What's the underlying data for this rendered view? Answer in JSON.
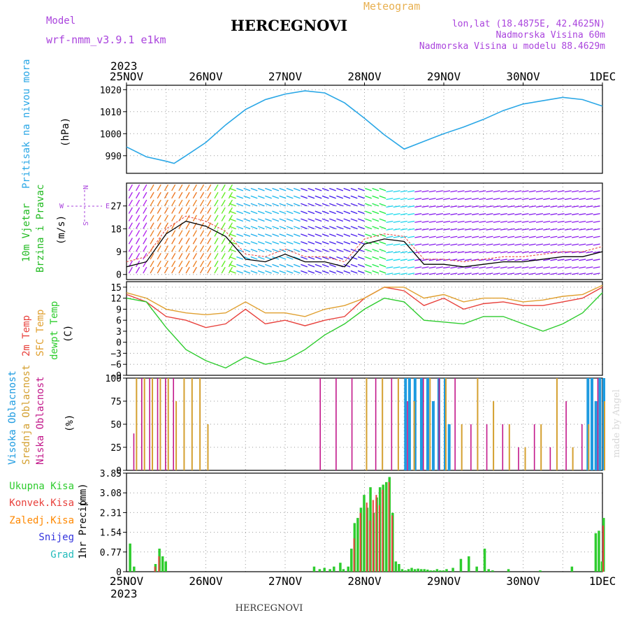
{
  "header": {
    "model_label": "Model",
    "model_name": "wrf-nmm_v3.9.1 e1km",
    "station": "HERCEGNOVI",
    "meteogram": "Meteogram",
    "lonlat": "lon,lat (18.4875E, 42.4625N)",
    "altitude": "Nadmorska Visina 60m",
    "model_altitude": "Nadmorska Visina u modelu 88.4629m",
    "footer_station": "HERCEGNOVI",
    "watermark": "made by Angel"
  },
  "colors": {
    "pressure": "#2aa7e6",
    "wind_label": "#22bb22",
    "dir_label": "#aa44dd",
    "temp2m": "#e8413c",
    "sfc": "#e0a030",
    "dewpt": "#2ecc2e",
    "high_cloud": "#1e9be0",
    "mid_cloud": "#d4a030",
    "low_cloud": "#c2188a",
    "total_precip": "#2ecc2e",
    "conv_precip": "#e8413c",
    "frozen": "#ff8800",
    "snow": "#3333dd",
    "hail": "#22bbbb"
  },
  "time_axis": {
    "year": "2023",
    "ticks": [
      "25NOV",
      "26NOV",
      "27NOV",
      "28NOV",
      "29NOV",
      "30NOV",
      "1DEC"
    ]
  },
  "chart_data": [
    {
      "type": "line",
      "name": "pressure",
      "ylabel": "Pritisak na nivou mora",
      "unit": "(hPa)",
      "ylim": [
        982,
        1022
      ],
      "yticks": [
        990,
        1000,
        1010,
        1020
      ],
      "grid": true,
      "x_days": [
        0,
        0.25,
        0.5,
        0.6,
        0.75,
        1,
        1.25,
        1.5,
        1.75,
        2,
        2.25,
        2.5,
        2.75,
        3,
        3.25,
        3.5,
        3.75,
        4,
        4.25,
        4.5,
        4.75,
        5,
        5.25,
        5.5,
        5.75,
        6
      ],
      "series": [
        {
          "values": [
            994,
            989.5,
            987.5,
            986.5,
            990,
            996,
            1004,
            1011,
            1015.5,
            1018,
            1019.5,
            1018.5,
            1014,
            1007,
            999.5,
            993,
            996.5,
            1000,
            1003,
            1006.5,
            1010.5,
            1013.5,
            1015,
            1016.5,
            1015.5,
            1012.5
          ]
        }
      ]
    },
    {
      "type": "line",
      "name": "wind",
      "ylabel": "10m Vjetar",
      "ylabel2": "Brzina i Pravac",
      "unit": "(m/s)",
      "ylim": [
        -2,
        36
      ],
      "yticks": [
        0,
        9,
        18,
        27
      ],
      "grid": true,
      "compass": [
        "N",
        "S",
        "W",
        "E"
      ],
      "x_days": [
        0,
        0.25,
        0.5,
        0.75,
        1,
        1.25,
        1.5,
        1.75,
        2,
        2.25,
        2.5,
        2.75,
        3,
        3.25,
        3.5,
        3.75,
        4,
        4.25,
        4.5,
        4.75,
        5,
        5.25,
        5.5,
        5.75,
        6
      ],
      "series": [
        {
          "values": [
            3,
            5,
            16,
            21,
            19,
            15,
            6,
            5,
            8,
            5,
            5,
            3,
            12,
            14,
            13,
            4,
            4,
            3,
            4,
            5,
            5,
            6,
            7,
            7,
            9
          ]
        }
      ]
    },
    {
      "type": "line",
      "name": "temperature",
      "ylabel": "2m Temp",
      "ylabel2": "SFC Temp",
      "ylabel3": "dewpt Temp",
      "unit": "(C)",
      "ylim": [
        -9,
        16.5
      ],
      "yticks": [
        -9,
        -6,
        -3,
        0,
        3,
        6,
        9,
        12,
        15
      ],
      "grid": true,
      "x_days": [
        0,
        0.25,
        0.5,
        0.75,
        1,
        1.25,
        1.5,
        1.75,
        2,
        2.25,
        2.5,
        2.75,
        3,
        3.25,
        3.5,
        3.75,
        4,
        4.25,
        4.5,
        4.75,
        5,
        5.25,
        5.5,
        5.75,
        6
      ],
      "series": [
        {
          "name": "2m Temp",
          "values": [
            13,
            11,
            7,
            6,
            4,
            5,
            9,
            5,
            6,
            4.5,
            6,
            7,
            12,
            15,
            14,
            10,
            12,
            9,
            10.5,
            11,
            10,
            10,
            11,
            12,
            15
          ]
        },
        {
          "name": "SFC Temp",
          "values": [
            13.5,
            12,
            9,
            8,
            7.5,
            8,
            11,
            8,
            8,
            7,
            9,
            10,
            12,
            15,
            15,
            12,
            13,
            11,
            12,
            12,
            11,
            11.5,
            12.5,
            13,
            15.5
          ]
        },
        {
          "name": "dewpt Temp",
          "values": [
            12,
            11,
            4,
            -2,
            -5,
            -7,
            -4,
            -6,
            -5,
            -2,
            2,
            5,
            9,
            12,
            11,
            6,
            5.5,
            5,
            7,
            7,
            5,
            3,
            5,
            8,
            13.5
          ]
        }
      ]
    },
    {
      "type": "bar",
      "name": "clouds",
      "ylabel": "Visoka Oblacnost",
      "ylabel2": "Srednja Oblacnost",
      "ylabel3": "Niska Oblacnost",
      "unit": "(%)",
      "ylim": [
        0,
        100
      ],
      "yticks": [
        0,
        25,
        50,
        75,
        100
      ],
      "grid": true,
      "series": [
        {
          "name": "Visoka Oblacnost",
          "x_days": [
            3.5,
            3.55,
            3.62,
            3.7,
            3.78,
            3.85,
            3.92,
            4.0,
            4.05,
            5.8,
            5.85,
            5.9,
            5.95,
            6.0
          ],
          "values": [
            100,
            100,
            100,
            100,
            100,
            75,
            100,
            100,
            50,
            100,
            100,
            75,
            100,
            100
          ]
        },
        {
          "name": "Srednja Oblacnost",
          "x_days": [
            0.1,
            0.2,
            0.3,
            0.4,
            0.5,
            0.6,
            0.7,
            0.8,
            0.9,
            1.0,
            3.0,
            3.2,
            3.4,
            3.6,
            3.8,
            4.0,
            4.2,
            4.4,
            4.6,
            4.8,
            5.0,
            5.2,
            5.4,
            5.6,
            5.8,
            6.0
          ],
          "values": [
            100,
            100,
            100,
            100,
            100,
            75,
            100,
            100,
            100,
            50,
            100,
            100,
            100,
            75,
            100,
            100,
            50,
            100,
            75,
            50,
            25,
            50,
            100,
            25,
            50,
            75
          ]
        },
        {
          "name": "Niska Oblacnost",
          "x_days": [
            0.05,
            0.15,
            0.25,
            0.35,
            0.45,
            0.55,
            2.4,
            2.6,
            2.8,
            3.1,
            3.3,
            3.5,
            3.7,
            3.9,
            4.1,
            4.3,
            4.5,
            4.7,
            4.9,
            5.1,
            5.3,
            5.5,
            5.7,
            5.9
          ],
          "values": [
            40,
            100,
            100,
            100,
            100,
            100,
            100,
            100,
            100,
            100,
            100,
            75,
            100,
            100,
            100,
            50,
            50,
            50,
            25,
            50,
            25,
            75,
            50,
            100
          ]
        }
      ]
    },
    {
      "type": "bar",
      "name": "precip",
      "ylabel": "1hr Precip",
      "unit": "(mm)",
      "ylim": [
        0,
        3.85
      ],
      "yticks": [
        0,
        0.77,
        1.54,
        2.31,
        3.08,
        3.85
      ],
      "grid": true,
      "legend": [
        "Ukupna Kisa",
        "Konvek.Kisa",
        "Zaledj.Kisa",
        "Snijeg",
        "Grad"
      ],
      "series": [
        {
          "name": "Ukupna Kisa",
          "x_days": [
            0.03,
            0.08,
            0.35,
            0.4,
            0.44,
            0.48,
            2.35,
            2.42,
            2.48,
            2.55,
            2.6,
            2.68,
            2.72,
            2.78,
            2.82,
            2.86,
            2.9,
            2.94,
            2.98,
            3.02,
            3.06,
            3.1,
            3.14,
            3.18,
            3.22,
            3.26,
            3.3,
            3.34,
            3.38,
            3.42,
            3.46,
            3.5,
            3.54,
            3.58,
            3.62,
            3.66,
            3.7,
            3.74,
            3.78,
            3.82,
            3.86,
            3.9,
            3.94,
            3.98,
            4.02,
            4.1,
            4.2,
            4.3,
            4.4,
            4.5,
            4.55,
            4.6,
            4.8,
            5.2,
            5.6,
            5.9,
            5.94,
            5.98,
            6.0
          ],
          "values": [
            1.1,
            0.2,
            0.3,
            0.9,
            0.6,
            0.4,
            0.2,
            0.1,
            0.15,
            0.1,
            0.2,
            0.35,
            0.1,
            0.2,
            0.9,
            1.9,
            2.1,
            2.5,
            3.0,
            2.5,
            3.3,
            2.3,
            2.9,
            3.3,
            3.4,
            3.5,
            3.7,
            2.3,
            0.4,
            0.3,
            0.1,
            0.05,
            0.1,
            0.15,
            0.1,
            0.12,
            0.1,
            0.1,
            0.08,
            0.05,
            0.05,
            0.1,
            0.05,
            0.05,
            0.1,
            0.15,
            0.5,
            0.6,
            0.2,
            0.9,
            0.1,
            0.05,
            0.1,
            0.05,
            0.2,
            1.5,
            1.6,
            0.4,
            2.1
          ]
        },
        {
          "name": "Konvek.Kisa",
          "x_days": [
            0.35,
            0.4,
            2.86,
            2.94,
            3.02,
            3.06,
            3.1,
            3.14,
            3.18,
            3.22,
            3.3,
            3.34,
            6.0
          ],
          "values": [
            0.2,
            0.6,
            1.3,
            2.3,
            2.7,
            2.0,
            2.8,
            3.0,
            2.6,
            3.2,
            3.5,
            2.2,
            1.8
          ]
        }
      ]
    }
  ]
}
